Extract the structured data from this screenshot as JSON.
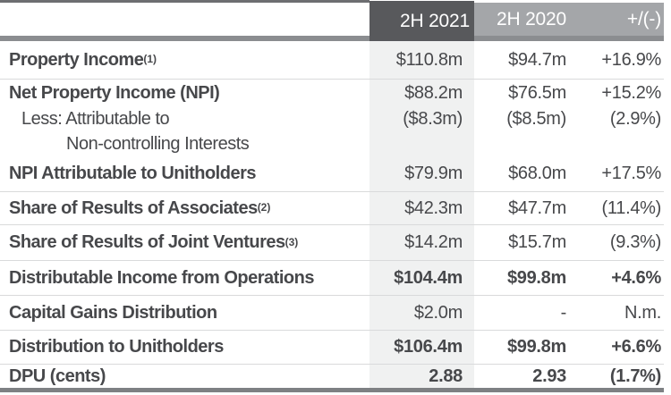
{
  "table": {
    "header": {
      "col_2021": "2H 2021",
      "col_2020": "2H 2020",
      "col_change": "+/(-)"
    },
    "rows": [
      {
        "label": "Property Income",
        "sup": "(1)",
        "v2021": "$110.8m",
        "v2020": "$94.7m",
        "change": "+16.9%"
      },
      {
        "label": "Net Property Income (NPI)",
        "v2021": "$88.2m",
        "v2020": "$76.5m",
        "change": "+15.2%"
      },
      {
        "label": "Less: Attributable to",
        "v2021": "($8.3m)",
        "v2020": "($8.5m)",
        "change": "(2.9%)"
      },
      {
        "label": "Non-controlling Interests"
      },
      {
        "label": "NPI Attributable to Unitholders",
        "v2021": "$79.9m",
        "v2020": "$68.0m",
        "change": "+17.5%"
      },
      {
        "label": "Share of Results of Associates",
        "sup": "(2)",
        "v2021": "$42.3m",
        "v2020": "$47.7m",
        "change": "(11.4%)"
      },
      {
        "label": "Share of Results of Joint Ventures",
        "sup": "(3)",
        "v2021": "$14.2m",
        "v2020": "$15.7m",
        "change": "(9.3%)"
      },
      {
        "label": "Distributable Income from Operations",
        "v2021": "$104.4m",
        "v2020": "$99.8m",
        "change": "+4.6%"
      },
      {
        "label": "Capital Gains Distribution",
        "v2021": "$2.0m",
        "v2020": "-",
        "change": "N.m."
      },
      {
        "label": "Distribution to Unitholders",
        "v2021": "$106.4m",
        "v2020": "$99.8m",
        "change": "+6.6%"
      },
      {
        "label": "DPU (cents)",
        "v2021": "2.88",
        "v2020": "2.93",
        "change": "(1.7%)"
      }
    ],
    "colors": {
      "header_dark_bg": "#58595c",
      "header_gray_bg": "#a4a6a9",
      "highlight_column_bg": "#f0f1f1",
      "text": "#47484b",
      "top_border": "#6d6e71",
      "header_underline": "#8b8d90",
      "bottom_border": "#7e8083",
      "row_divider": "#d9dadb"
    }
  }
}
